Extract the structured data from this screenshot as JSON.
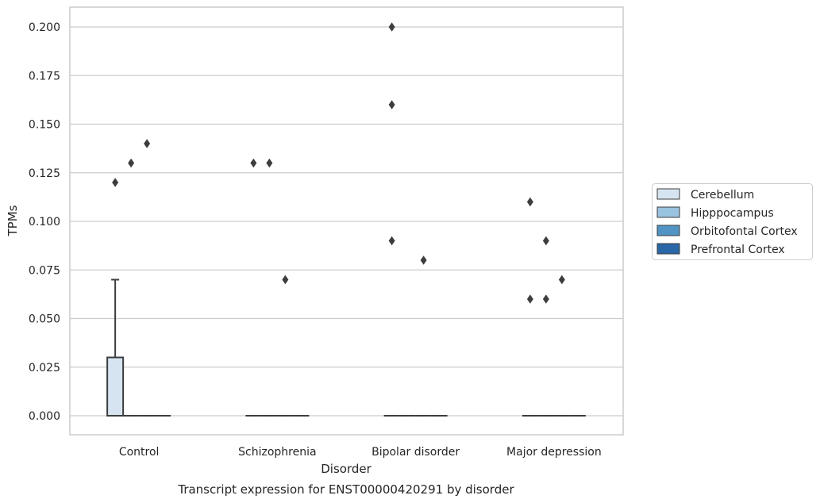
{
  "chart_data": {
    "type": "box",
    "xlabel": "Disorder",
    "ylabel": "TPMs",
    "caption": "Transcript expression for ENST00000420291 by disorder",
    "categories": [
      "Control",
      "Schizophrenia",
      "Bipolar disorder",
      "Major depression"
    ],
    "ylim": [
      -0.01,
      0.21
    ],
    "yticks": [
      0.0,
      0.025,
      0.05,
      0.075,
      0.1,
      0.125,
      0.15,
      0.175,
      0.2
    ],
    "ytick_labels": [
      "0.000",
      "0.025",
      "0.050",
      "0.075",
      "0.100",
      "0.125",
      "0.150",
      "0.175",
      "0.200"
    ],
    "grid": true,
    "legend_position": "right",
    "series": [
      {
        "name": "Cerebellum",
        "color": "#d6e4f1",
        "boxes": [
          {
            "q1": 0.0,
            "median": 0.0,
            "q3": 0.03,
            "whisker_low": 0.0,
            "whisker_high": 0.07,
            "outliers": [
              0.12
            ]
          },
          {
            "q1": 0.0,
            "median": 0.0,
            "q3": 0.0,
            "whisker_low": 0.0,
            "whisker_high": 0.0,
            "outliers": [
              0.13
            ]
          },
          {
            "q1": 0.0,
            "median": 0.0,
            "q3": 0.0,
            "whisker_low": 0.0,
            "whisker_high": 0.0,
            "outliers": [
              0.2,
              0.16,
              0.09
            ]
          },
          {
            "q1": 0.0,
            "median": 0.0,
            "q3": 0.0,
            "whisker_low": 0.0,
            "whisker_high": 0.0,
            "outliers": [
              0.11,
              0.06
            ]
          }
        ]
      },
      {
        "name": "Hipppocampus",
        "color": "#9ac3df",
        "boxes": [
          {
            "q1": 0.0,
            "median": 0.0,
            "q3": 0.0,
            "whisker_low": 0.0,
            "whisker_high": 0.0,
            "outliers": [
              0.13
            ]
          },
          {
            "q1": 0.0,
            "median": 0.0,
            "q3": 0.0,
            "whisker_low": 0.0,
            "whisker_high": 0.0,
            "outliers": [
              0.13
            ]
          },
          {
            "q1": 0.0,
            "median": 0.0,
            "q3": 0.0,
            "whisker_low": 0.0,
            "whisker_high": 0.0,
            "outliers": []
          },
          {
            "q1": 0.0,
            "median": 0.0,
            "q3": 0.0,
            "whisker_low": 0.0,
            "whisker_high": 0.0,
            "outliers": [
              0.09,
              0.06
            ]
          }
        ]
      },
      {
        "name": "Orbitofontal Cortex",
        "color": "#5193c3",
        "boxes": [
          {
            "q1": 0.0,
            "median": 0.0,
            "q3": 0.0,
            "whisker_low": 0.0,
            "whisker_high": 0.0,
            "outliers": [
              0.14
            ]
          },
          {
            "q1": 0.0,
            "median": 0.0,
            "q3": 0.0,
            "whisker_low": 0.0,
            "whisker_high": 0.0,
            "outliers": [
              0.07
            ]
          },
          {
            "q1": 0.0,
            "median": 0.0,
            "q3": 0.0,
            "whisker_low": 0.0,
            "whisker_high": 0.0,
            "outliers": [
              0.08
            ]
          },
          {
            "q1": 0.0,
            "median": 0.0,
            "q3": 0.0,
            "whisker_low": 0.0,
            "whisker_high": 0.0,
            "outliers": [
              0.07
            ]
          }
        ]
      },
      {
        "name": "Prefrontal Cortex",
        "color": "#2a67a6",
        "boxes": [
          {
            "q1": 0.0,
            "median": 0.0,
            "q3": 0.0,
            "whisker_low": 0.0,
            "whisker_high": 0.0,
            "outliers": []
          },
          {
            "q1": 0.0,
            "median": 0.0,
            "q3": 0.0,
            "whisker_low": 0.0,
            "whisker_high": 0.0,
            "outliers": []
          },
          {
            "q1": 0.0,
            "median": 0.0,
            "q3": 0.0,
            "whisker_low": 0.0,
            "whisker_high": 0.0,
            "outliers": []
          },
          {
            "q1": 0.0,
            "median": 0.0,
            "q3": 0.0,
            "whisker_low": 0.0,
            "whisker_high": 0.0,
            "outliers": []
          }
        ]
      }
    ],
    "colors": {
      "grid": "#cccccc",
      "frame": "#cccccc",
      "edge": "#3d3d3d",
      "background": "#ffffff"
    }
  }
}
